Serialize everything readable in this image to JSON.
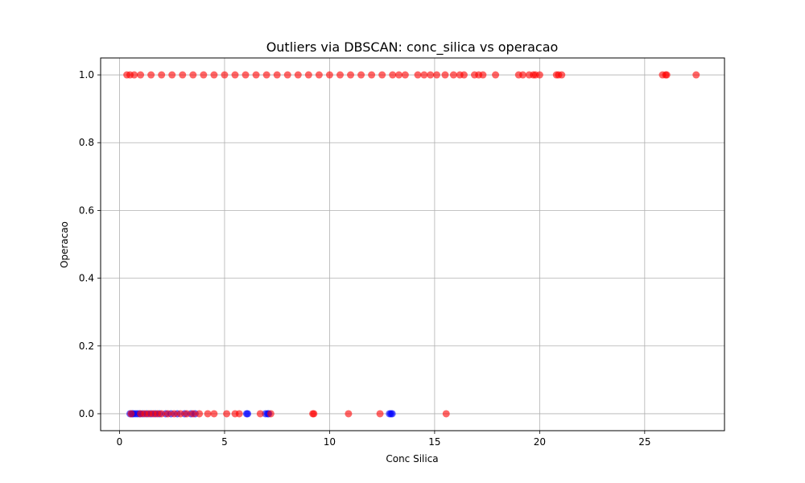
{
  "chart_data": {
    "type": "scatter",
    "title": "Outliers via DBSCAN: conc_silica vs operacao",
    "xlabel": "Conc Silica",
    "ylabel": "Operacao",
    "xlim": [
      -0.9,
      28.8
    ],
    "ylim": [
      -0.05,
      1.05
    ],
    "xticks": [
      0,
      5,
      10,
      15,
      20,
      25
    ],
    "xtick_labels": [
      "0",
      "5",
      "10",
      "15",
      "20",
      "25"
    ],
    "yticks": [
      0.0,
      0.2,
      0.4,
      0.6,
      0.8,
      1.0
    ],
    "ytick_labels": [
      "0.0",
      "0.2",
      "0.4",
      "0.6",
      "0.8",
      "1.0"
    ],
    "grid": true,
    "colors": {
      "outlier": "#ff0000",
      "inlier": "#0000ff"
    },
    "series": [
      {
        "color": "#0000ff",
        "points": [
          [
            0.5,
            0
          ],
          [
            0.6,
            0
          ],
          [
            0.65,
            0
          ],
          [
            0.75,
            0
          ],
          [
            0.85,
            0
          ],
          [
            0.95,
            0
          ],
          [
            1.1,
            0
          ],
          [
            1.3,
            0
          ],
          [
            1.5,
            0
          ],
          [
            1.7,
            0
          ],
          [
            1.9,
            0
          ],
          [
            2.2,
            0
          ],
          [
            2.45,
            0
          ],
          [
            2.75,
            0
          ],
          [
            3.1,
            0
          ],
          [
            3.4,
            0
          ],
          [
            3.6,
            0
          ],
          [
            6.05,
            0
          ],
          [
            6.1,
            0
          ],
          [
            6.95,
            0
          ],
          [
            7.05,
            0
          ],
          [
            7.1,
            0
          ],
          [
            12.85,
            0
          ],
          [
            12.92,
            0
          ],
          [
            12.98,
            0
          ]
        ]
      },
      {
        "color": "#ff0000",
        "points": [
          [
            0.55,
            0
          ],
          [
            1.0,
            0
          ],
          [
            1.2,
            0
          ],
          [
            1.4,
            0
          ],
          [
            1.6,
            0
          ],
          [
            1.8,
            0
          ],
          [
            2.0,
            0
          ],
          [
            2.3,
            0
          ],
          [
            2.6,
            0
          ],
          [
            2.9,
            0
          ],
          [
            3.2,
            0
          ],
          [
            3.5,
            0
          ],
          [
            3.8,
            0
          ],
          [
            4.2,
            0
          ],
          [
            4.5,
            0
          ],
          [
            5.1,
            0
          ],
          [
            5.5,
            0
          ],
          [
            5.7,
            0
          ],
          [
            6.7,
            0
          ],
          [
            7.2,
            0
          ],
          [
            9.2,
            0
          ],
          [
            9.25,
            0
          ],
          [
            10.9,
            0
          ],
          [
            12.4,
            0
          ],
          [
            15.55,
            0
          ],
          [
            0.35,
            1
          ],
          [
            0.5,
            1
          ],
          [
            0.7,
            1
          ],
          [
            1.0,
            1
          ],
          [
            1.5,
            1
          ],
          [
            2.0,
            1
          ],
          [
            2.5,
            1
          ],
          [
            3.0,
            1
          ],
          [
            3.5,
            1
          ],
          [
            4.0,
            1
          ],
          [
            4.5,
            1
          ],
          [
            5.0,
            1
          ],
          [
            5.5,
            1
          ],
          [
            6.0,
            1
          ],
          [
            6.5,
            1
          ],
          [
            7.0,
            1
          ],
          [
            7.5,
            1
          ],
          [
            8.0,
            1
          ],
          [
            8.5,
            1
          ],
          [
            9.0,
            1
          ],
          [
            9.5,
            1
          ],
          [
            10.0,
            1
          ],
          [
            10.5,
            1
          ],
          [
            11.0,
            1
          ],
          [
            11.5,
            1
          ],
          [
            12.0,
            1
          ],
          [
            12.5,
            1
          ],
          [
            13.0,
            1
          ],
          [
            13.3,
            1
          ],
          [
            13.6,
            1
          ],
          [
            14.2,
            1
          ],
          [
            14.5,
            1
          ],
          [
            14.8,
            1
          ],
          [
            15.1,
            1
          ],
          [
            15.5,
            1
          ],
          [
            15.9,
            1
          ],
          [
            16.2,
            1
          ],
          [
            16.4,
            1
          ],
          [
            16.9,
            1
          ],
          [
            17.1,
            1
          ],
          [
            17.3,
            1
          ],
          [
            17.9,
            1
          ],
          [
            19.0,
            1
          ],
          [
            19.2,
            1
          ],
          [
            19.5,
            1
          ],
          [
            19.7,
            1
          ],
          [
            19.8,
            1
          ],
          [
            20.0,
            1
          ],
          [
            20.8,
            1
          ],
          [
            20.9,
            1
          ],
          [
            21.05,
            1
          ],
          [
            25.85,
            1
          ],
          [
            26.0,
            1
          ],
          [
            26.05,
            1
          ],
          [
            27.45,
            1
          ]
        ]
      }
    ]
  }
}
